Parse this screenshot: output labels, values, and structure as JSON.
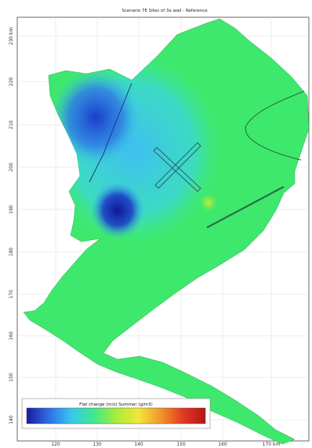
{
  "title": "Scenario 7E Sites of 3a wall - Reference",
  "x_ticks": [
    "120",
    "130",
    "140",
    "150",
    "160",
    "170 km"
  ],
  "y_ticks": [
    "230 km",
    "220",
    "210",
    "200",
    "190",
    "180",
    "170",
    "160",
    "150",
    "140"
  ],
  "colorbar": {
    "label": "Flat change (m/s) Summer (g/m3)",
    "colors": [
      "#1a1aa0",
      "#2f6ee6",
      "#38c8f0",
      "#3ee890",
      "#a8ec3a",
      "#f2e63a",
      "#f2962a",
      "#e23a22",
      "#b41414"
    ]
  },
  "colors": {
    "background": "#ffffff",
    "frame": "#444444",
    "grid": "#d9d9d9",
    "water_default": "#3ee86c",
    "barrier": "#2a6e48"
  }
}
